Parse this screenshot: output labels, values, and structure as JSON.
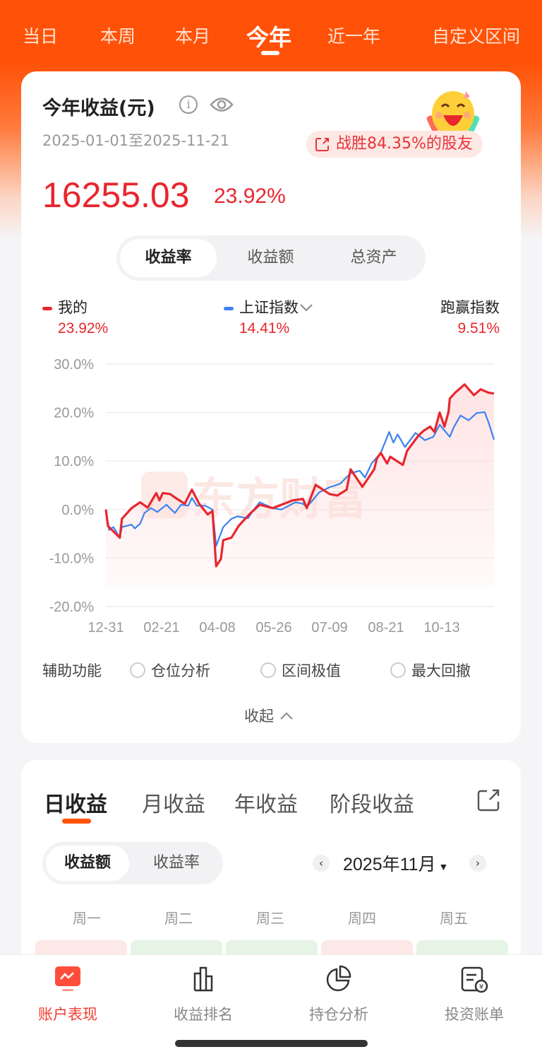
{
  "periods": [
    "当日",
    "本周",
    "本月",
    "今年",
    "近一年",
    "自定义区间"
  ],
  "active_period": "今年",
  "summary": {
    "title": "今年收益(元)",
    "date_range": "2025-01-01至2025-11-21",
    "beat_text": "战胜84.35%的股友",
    "amount": "16255.03",
    "return_pct": "23.92%"
  },
  "chart_tabs": [
    "收益率",
    "收益额",
    "总资产"
  ],
  "legend": {
    "mine_label": "我的",
    "mine_value": "23.92%",
    "index_label": "上证指数",
    "index_value": "14.41%",
    "beat_label": "跑赢指数",
    "beat_value": "9.51%"
  },
  "watermark": "东方财富",
  "aux": {
    "label": "辅助功能",
    "options": [
      "仓位分析",
      "区间极值",
      "最大回撤"
    ]
  },
  "collapse_label": "收起",
  "daily": {
    "tabs": [
      "日收益",
      "月收益",
      "年收益",
      "阶段收益"
    ],
    "seg": [
      "收益额",
      "收益率"
    ],
    "month": "2025年11月",
    "weekdays": [
      "周一",
      "周二",
      "周三",
      "周四",
      "周五"
    ],
    "cell_colors": [
      "#fde8e8",
      "#e6f4e6",
      "#e6f4e6",
      "#fde8e8",
      "#e6f4e6"
    ]
  },
  "nav": [
    "账户表现",
    "收益排名",
    "持仓分析",
    "投资账单"
  ],
  "colors": {
    "brand": "#ff5208",
    "mine": "#e8262e",
    "index": "#3b82f0"
  },
  "chart_data": {
    "type": "line",
    "y_ticks": [
      "30.0%",
      "20.0%",
      "10.0%",
      "0.0%",
      "-10.0%",
      "-20.0%"
    ],
    "ylim": [
      -20,
      30
    ],
    "x_ticks": [
      "12-31",
      "02-21",
      "04-08",
      "05-26",
      "07-09",
      "08-21",
      "10-13"
    ],
    "grid": true,
    "series": [
      {
        "name": "我的",
        "color": "#e8262e",
        "points": [
          [
            "12-31",
            0
          ],
          [
            "01-02",
            -3.4
          ],
          [
            "01-13",
            -5.8
          ],
          [
            "01-15",
            -1.9
          ],
          [
            "01-24",
            0.3
          ],
          [
            "02-01",
            1.5
          ],
          [
            "02-08",
            0.4
          ],
          [
            "02-16",
            3.4
          ],
          [
            "02-19",
            1.9
          ],
          [
            "02-22",
            3.4
          ],
          [
            "02-28",
            3.2
          ],
          [
            "03-04",
            2.5
          ],
          [
            "03-12",
            1.2
          ],
          [
            "03-18",
            4.1
          ],
          [
            "03-24",
            1.2
          ],
          [
            "03-31",
            -1.0
          ],
          [
            "04-04",
            -0.3
          ],
          [
            "04-07",
            -11.7
          ],
          [
            "04-11",
            -10.2
          ],
          [
            "04-13",
            -6.3
          ],
          [
            "04-20",
            -5.8
          ],
          [
            "04-26",
            -3.4
          ],
          [
            "05-05",
            -1.0
          ],
          [
            "05-14",
            1.0
          ],
          [
            "05-25",
            0.3
          ],
          [
            "06-10",
            1.9
          ],
          [
            "06-18",
            2.2
          ],
          [
            "06-21",
            0.3
          ],
          [
            "06-28",
            5.1
          ],
          [
            "07-09",
            3.2
          ],
          [
            "07-15",
            2.9
          ],
          [
            "07-22",
            4.1
          ],
          [
            "07-25",
            8.3
          ],
          [
            "08-03",
            4.7
          ],
          [
            "08-12",
            8.3
          ],
          [
            "08-14",
            10.5
          ],
          [
            "08-17",
            11.7
          ],
          [
            "08-22",
            9.5
          ],
          [
            "08-25",
            10.9
          ],
          [
            "09-06",
            9.2
          ],
          [
            "09-10",
            12.1
          ],
          [
            "09-21",
            15.3
          ],
          [
            "09-26",
            16.3
          ],
          [
            "10-02",
            17.1
          ],
          [
            "10-06",
            16.0
          ],
          [
            "10-11",
            20.0
          ],
          [
            "10-15",
            17.1
          ],
          [
            "10-18",
            20.1
          ],
          [
            "10-19",
            22.9
          ],
          [
            "10-23",
            24.1
          ],
          [
            "10-30",
            25.8
          ],
          [
            "11-06",
            23.6
          ],
          [
            "11-11",
            24.8
          ],
          [
            "11-17",
            24.1
          ],
          [
            "11-21",
            23.92
          ]
        ]
      },
      {
        "name": "上证指数",
        "color": "#3b82f0",
        "points": [
          [
            "12-31",
            0
          ],
          [
            "01-03",
            -4.2
          ],
          [
            "01-07",
            -3.6
          ],
          [
            "01-13",
            -5.8
          ],
          [
            "01-15",
            -3.6
          ],
          [
            "01-24",
            -3.1
          ],
          [
            "01-27",
            -3.9
          ],
          [
            "02-01",
            -2.9
          ],
          [
            "02-05",
            -0.7
          ],
          [
            "02-11",
            0.3
          ],
          [
            "02-17",
            -0.5
          ],
          [
            "02-25",
            1.0
          ],
          [
            "03-01",
            0
          ],
          [
            "03-04",
            -0.7
          ],
          [
            "03-09",
            1.0
          ],
          [
            "03-15",
            0.8
          ],
          [
            "03-18",
            2.4
          ],
          [
            "03-22",
            0.8
          ],
          [
            "03-29",
            0.8
          ],
          [
            "04-04",
            0
          ],
          [
            "04-07",
            -7.5
          ],
          [
            "04-13",
            -3.6
          ],
          [
            "04-20",
            -1.9
          ],
          [
            "04-25",
            -1.4
          ],
          [
            "05-04",
            -1.8
          ],
          [
            "05-09",
            0
          ],
          [
            "05-14",
            1.5
          ],
          [
            "05-25",
            0.3
          ],
          [
            "06-01",
            0
          ],
          [
            "06-12",
            1.5
          ],
          [
            "06-18",
            1.2
          ],
          [
            "06-21",
            0.5
          ],
          [
            "07-01",
            3.6
          ],
          [
            "07-09",
            4.6
          ],
          [
            "07-17",
            5.3
          ],
          [
            "07-25",
            7.5
          ],
          [
            "08-01",
            8.0
          ],
          [
            "08-05",
            6.6
          ],
          [
            "08-10",
            9.5
          ],
          [
            "08-17",
            11.7
          ],
          [
            "08-24",
            16.0
          ],
          [
            "08-28",
            13.8
          ],
          [
            "09-01",
            15.5
          ],
          [
            "09-08",
            12.9
          ],
          [
            "09-18",
            15.8
          ],
          [
            "09-27",
            14.3
          ],
          [
            "10-05",
            15.0
          ],
          [
            "10-11",
            17.5
          ],
          [
            "10-15",
            16.3
          ],
          [
            "10-19",
            15.0
          ],
          [
            "10-22",
            17.0
          ],
          [
            "10-27",
            19.4
          ],
          [
            "11-02",
            18.4
          ],
          [
            "11-08",
            19.9
          ],
          [
            "11-14",
            20.1
          ],
          [
            "11-17",
            17.9
          ],
          [
            "11-21",
            14.41
          ]
        ]
      }
    ]
  }
}
